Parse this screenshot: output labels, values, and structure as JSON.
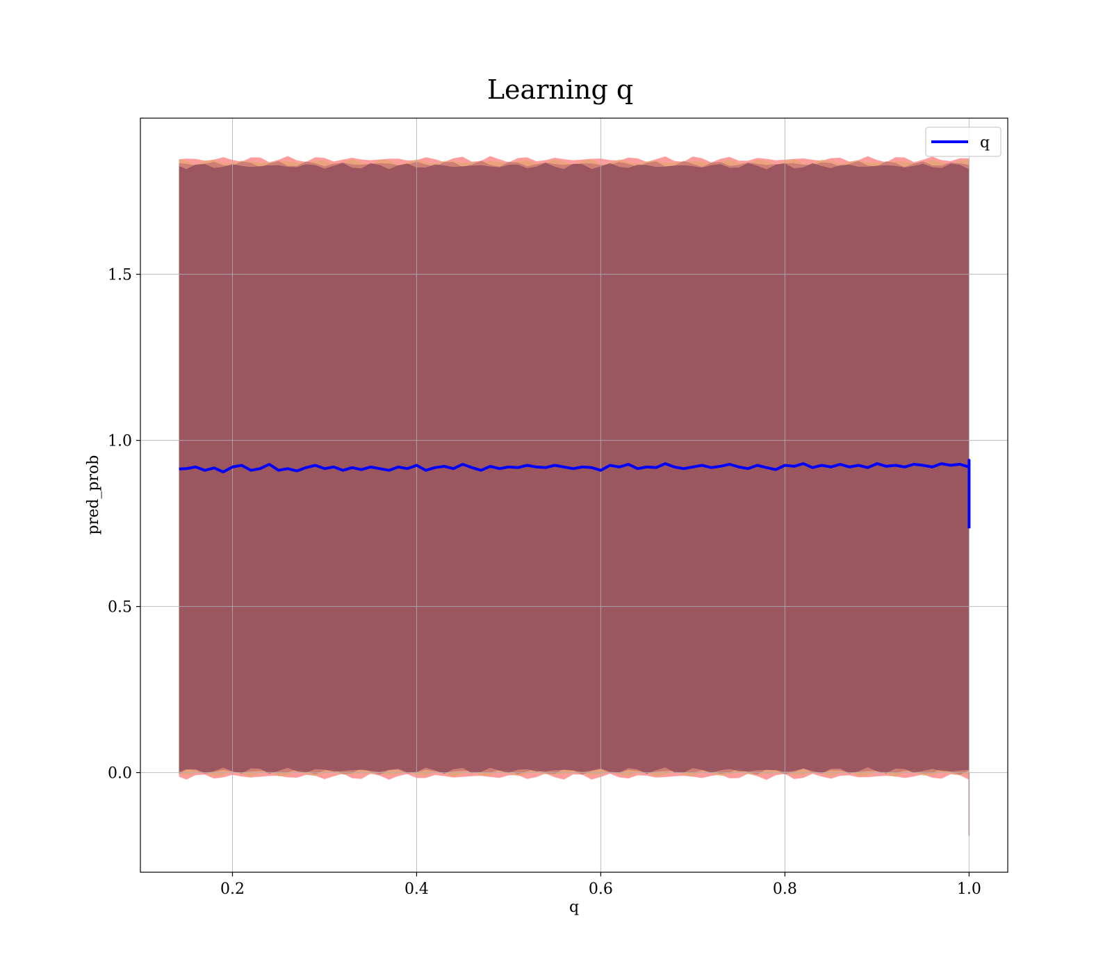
{
  "chart_data": {
    "type": "line",
    "title": "Learning q",
    "xlabel": "q",
    "ylabel": "pred_prob",
    "xlim": [
      0.1,
      1.042
    ],
    "ylim": [
      -0.3,
      1.97
    ],
    "x_ticks": [
      {
        "value": 0.2,
        "label": "0.2"
      },
      {
        "value": 0.4,
        "label": "0.4"
      },
      {
        "value": 0.6,
        "label": "0.6"
      },
      {
        "value": 0.8,
        "label": "0.8"
      },
      {
        "value": 1.0,
        "label": "1.0"
      }
    ],
    "y_ticks": [
      {
        "value": 0.0,
        "label": "0.0"
      },
      {
        "value": 0.5,
        "label": "0.5"
      },
      {
        "value": 1.0,
        "label": "1.0"
      },
      {
        "value": 1.5,
        "label": "1.5"
      }
    ],
    "grid": true,
    "legend_position": "top-right",
    "series": [
      {
        "name": "q",
        "color": "#0000ff",
        "x": [
          0.142,
          0.15,
          0.16,
          0.17,
          0.18,
          0.19,
          0.2,
          0.21,
          0.22,
          0.23,
          0.24,
          0.25,
          0.26,
          0.27,
          0.28,
          0.29,
          0.3,
          0.31,
          0.32,
          0.33,
          0.34,
          0.35,
          0.36,
          0.37,
          0.38,
          0.39,
          0.4,
          0.41,
          0.42,
          0.43,
          0.44,
          0.45,
          0.46,
          0.47,
          0.48,
          0.49,
          0.5,
          0.51,
          0.52,
          0.53,
          0.54,
          0.55,
          0.56,
          0.57,
          0.58,
          0.59,
          0.6,
          0.61,
          0.62,
          0.63,
          0.64,
          0.65,
          0.66,
          0.67,
          0.68,
          0.69,
          0.7,
          0.71,
          0.72,
          0.73,
          0.74,
          0.75,
          0.76,
          0.77,
          0.78,
          0.79,
          0.8,
          0.81,
          0.82,
          0.83,
          0.84,
          0.85,
          0.86,
          0.87,
          0.88,
          0.89,
          0.9,
          0.91,
          0.92,
          0.93,
          0.94,
          0.95,
          0.96,
          0.97,
          0.98,
          0.99,
          1.0,
          1.0,
          1.0
        ],
        "values": [
          0.914,
          0.915,
          0.92,
          0.91,
          0.917,
          0.905,
          0.92,
          0.925,
          0.91,
          0.915,
          0.928,
          0.91,
          0.915,
          0.908,
          0.918,
          0.925,
          0.915,
          0.92,
          0.91,
          0.918,
          0.912,
          0.92,
          0.915,
          0.91,
          0.92,
          0.915,
          0.925,
          0.91,
          0.918,
          0.922,
          0.915,
          0.928,
          0.918,
          0.91,
          0.922,
          0.915,
          0.92,
          0.918,
          0.925,
          0.92,
          0.918,
          0.925,
          0.92,
          0.915,
          0.92,
          0.918,
          0.91,
          0.925,
          0.92,
          0.928,
          0.915,
          0.92,
          0.918,
          0.93,
          0.92,
          0.915,
          0.92,
          0.925,
          0.918,
          0.922,
          0.928,
          0.92,
          0.915,
          0.925,
          0.918,
          0.912,
          0.925,
          0.922,
          0.93,
          0.918,
          0.925,
          0.92,
          0.928,
          0.92,
          0.925,
          0.918,
          0.93,
          0.922,
          0.925,
          0.92,
          0.928,
          0.925,
          0.92,
          0.93,
          0.925,
          0.928,
          0.92,
          0.94,
          0.735
        ]
      }
    ],
    "bands": [
      {
        "color": "#ff4c4c",
        "opacity": 0.55,
        "lower": -0.012,
        "upper": 1.846
      },
      {
        "color": "#d9a860",
        "opacity": 0.55,
        "lower": -0.004,
        "upper": 1.838
      },
      {
        "color": "#c36e72",
        "opacity": 0.7,
        "lower": 0.003,
        "upper": 1.832
      },
      {
        "color": "#8a4a5a",
        "opacity": 0.75,
        "lower": 0.006,
        "upper": 1.826
      }
    ],
    "legend": [
      {
        "label": "q",
        "color": "#0000ff"
      }
    ]
  }
}
